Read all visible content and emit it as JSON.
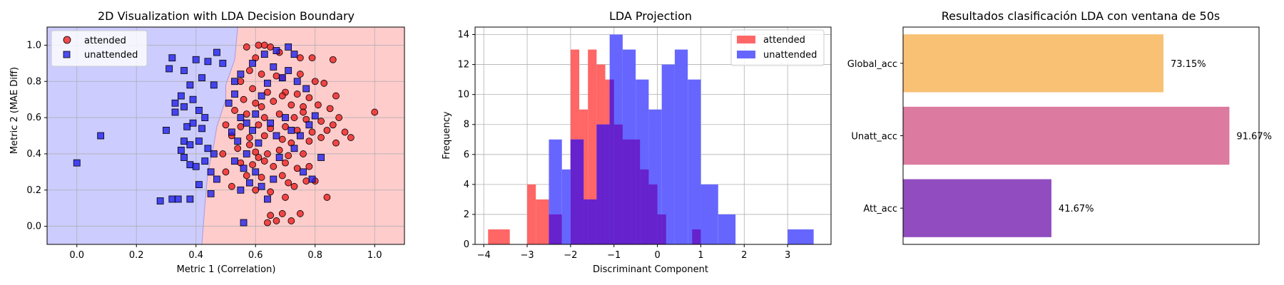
{
  "chart_data": [
    {
      "type": "scatter",
      "title": "2D Visualization with LDA Decision Boundary",
      "xlabel": "Metric 1 (Correlation)",
      "ylabel": "Metric 2 (MAE Diff)",
      "xlim": [
        -0.1,
        1.1
      ],
      "ylim": [
        -0.1,
        1.1
      ],
      "xticks": [
        "0.0",
        "0.2",
        "0.4",
        "0.6",
        "0.8",
        "1.0"
      ],
      "yticks": [
        "0.0",
        "0.2",
        "0.4",
        "0.6",
        "0.8",
        "1.0"
      ],
      "grid": true,
      "legend_position": "top-left",
      "region_colors": {
        "unattended": "#ccccff",
        "attended": "#ffcccc"
      },
      "boundary": [
        [
          0.54,
          1.1
        ],
        [
          0.53,
          0.92
        ],
        [
          0.5,
          0.78
        ],
        [
          0.5,
          0.7
        ],
        [
          0.47,
          0.55
        ],
        [
          0.46,
          0.45
        ],
        [
          0.44,
          0.3
        ],
        [
          0.43,
          0.12
        ],
        [
          0.42,
          -0.1
        ]
      ],
      "series": [
        {
          "name": "attended",
          "marker": "circle",
          "color": "#ee2222",
          "points": [
            [
              0.57,
              0.99
            ],
            [
              0.61,
              1.0
            ],
            [
              0.63,
              1.0
            ],
            [
              0.65,
              0.99
            ],
            [
              0.68,
              0.96
            ],
            [
              0.75,
              0.93
            ],
            [
              0.79,
              0.93
            ],
            [
              0.86,
              0.92
            ],
            [
              0.6,
              0.93
            ],
            [
              0.58,
              0.86
            ],
            [
              0.62,
              0.84
            ],
            [
              0.67,
              0.83
            ],
            [
              0.69,
              0.82
            ],
            [
              0.75,
              0.84
            ],
            [
              0.8,
              0.8
            ],
            [
              0.83,
              0.79
            ],
            [
              0.87,
              0.72
            ],
            [
              0.55,
              0.8
            ],
            [
              0.59,
              0.76
            ],
            [
              0.64,
              0.74
            ],
            [
              0.7,
              0.74
            ],
            [
              0.74,
              0.73
            ],
            [
              0.78,
              0.71
            ],
            [
              0.56,
              0.7
            ],
            [
              0.6,
              0.68
            ],
            [
              0.62,
              0.66
            ],
            [
              0.66,
              0.69
            ],
            [
              0.72,
              0.67
            ],
            [
              0.76,
              0.66
            ],
            [
              0.81,
              0.67
            ],
            [
              0.85,
              0.65
            ],
            [
              0.53,
              0.64
            ],
            [
              0.57,
              0.62
            ],
            [
              0.63,
              0.6
            ],
            [
              0.68,
              0.62
            ],
            [
              0.73,
              0.6
            ],
            [
              0.77,
              0.59
            ],
            [
              0.82,
              0.58
            ],
            [
              0.88,
              0.6
            ],
            [
              0.86,
              0.56
            ],
            [
              0.5,
              0.56
            ],
            [
              0.55,
              0.55
            ],
            [
              0.61,
              0.56
            ],
            [
              0.65,
              0.54
            ],
            [
              0.7,
              0.55
            ],
            [
              0.74,
              0.53
            ],
            [
              0.79,
              0.52
            ],
            [
              0.84,
              0.53
            ],
            [
              0.9,
              0.52
            ],
            [
              0.92,
              0.49
            ],
            [
              0.52,
              0.5
            ],
            [
              0.58,
              0.49
            ],
            [
              0.63,
              0.5
            ],
            [
              0.69,
              0.48
            ],
            [
              0.72,
              0.46
            ],
            [
              0.78,
              0.47
            ],
            [
              0.82,
              0.49
            ],
            [
              0.87,
              0.46
            ],
            [
              0.54,
              0.43
            ],
            [
              0.6,
              0.41
            ],
            [
              0.64,
              0.4
            ],
            [
              0.68,
              0.42
            ],
            [
              0.71,
              0.39
            ],
            [
              0.76,
              0.4
            ],
            [
              0.49,
              0.4
            ],
            [
              0.55,
              0.35
            ],
            [
              0.59,
              0.34
            ],
            [
              0.63,
              0.36
            ],
            [
              0.66,
              0.33
            ],
            [
              0.7,
              0.35
            ],
            [
              0.74,
              0.32
            ],
            [
              0.78,
              0.33
            ],
            [
              0.5,
              0.3
            ],
            [
              0.57,
              0.28
            ],
            [
              0.62,
              0.27
            ],
            [
              0.69,
              0.28
            ],
            [
              0.71,
              0.24
            ],
            [
              0.73,
              0.22
            ],
            [
              0.77,
              0.25
            ],
            [
              0.8,
              0.25
            ],
            [
              0.52,
              0.22
            ],
            [
              0.6,
              0.2
            ],
            [
              0.65,
              0.19
            ],
            [
              0.7,
              0.16
            ],
            [
              0.84,
              0.16
            ],
            [
              0.65,
              0.06
            ],
            [
              0.69,
              0.07
            ],
            [
              0.67,
              0.03
            ],
            [
              0.64,
              0.02
            ],
            [
              0.72,
              0.03
            ],
            [
              0.75,
              0.07
            ],
            [
              1.0,
              0.63
            ],
            [
              0.76,
              0.63
            ],
            [
              0.69,
              0.72
            ],
            [
              0.58,
              0.45
            ],
            [
              0.61,
              0.38
            ]
          ]
        },
        {
          "name": "unattended",
          "marker": "square",
          "color": "#2222ee",
          "points": [
            [
              0.0,
              0.35
            ],
            [
              0.08,
              0.5
            ],
            [
              0.28,
              0.14
            ],
            [
              0.32,
              0.15
            ],
            [
              0.34,
              0.15
            ],
            [
              0.38,
              0.15
            ],
            [
              0.3,
              0.53
            ],
            [
              0.31,
              0.87
            ],
            [
              0.32,
              0.93
            ],
            [
              0.36,
              0.86
            ],
            [
              0.4,
              0.92
            ],
            [
              0.44,
              0.91
            ],
            [
              0.47,
              0.96
            ],
            [
              0.49,
              0.9
            ],
            [
              0.42,
              0.82
            ],
            [
              0.46,
              0.78
            ],
            [
              0.38,
              0.78
            ],
            [
              0.35,
              0.72
            ],
            [
              0.33,
              0.68
            ],
            [
              0.33,
              0.63
            ],
            [
              0.36,
              0.66
            ],
            [
              0.39,
              0.7
            ],
            [
              0.41,
              0.64
            ],
            [
              0.43,
              0.6
            ],
            [
              0.37,
              0.55
            ],
            [
              0.39,
              0.57
            ],
            [
              0.42,
              0.54
            ],
            [
              0.36,
              0.47
            ],
            [
              0.38,
              0.45
            ],
            [
              0.41,
              0.47
            ],
            [
              0.44,
              0.43
            ],
            [
              0.35,
              0.42
            ],
            [
              0.36,
              0.38
            ],
            [
              0.38,
              0.34
            ],
            [
              0.4,
              0.33
            ],
            [
              0.43,
              0.36
            ],
            [
              0.46,
              0.4
            ],
            [
              0.45,
              0.3
            ],
            [
              0.47,
              0.26
            ],
            [
              0.41,
              0.23
            ],
            [
              0.45,
              0.18
            ],
            [
              0.53,
              0.8
            ],
            [
              0.55,
              0.84
            ],
            [
              0.59,
              0.9
            ],
            [
              0.63,
              0.95
            ],
            [
              0.67,
              0.97
            ],
            [
              0.71,
              0.99
            ],
            [
              0.73,
              0.95
            ],
            [
              0.51,
              0.68
            ],
            [
              0.53,
              0.73
            ],
            [
              0.55,
              0.6
            ],
            [
              0.57,
              0.57
            ],
            [
              0.52,
              0.52
            ],
            [
              0.54,
              0.47
            ],
            [
              0.57,
              0.4
            ],
            [
              0.59,
              0.53
            ],
            [
              0.6,
              0.62
            ],
            [
              0.62,
              0.72
            ],
            [
              0.64,
              0.79
            ],
            [
              0.66,
              0.88
            ],
            [
              0.69,
              0.82
            ],
            [
              0.71,
              0.86
            ],
            [
              0.74,
              0.8
            ],
            [
              0.77,
              0.76
            ],
            [
              0.65,
              0.57
            ],
            [
              0.67,
              0.5
            ],
            [
              0.7,
              0.6
            ],
            [
              0.72,
              0.53
            ],
            [
              0.75,
              0.5
            ],
            [
              0.78,
              0.56
            ],
            [
              0.8,
              0.61
            ],
            [
              0.82,
              0.38
            ],
            [
              0.6,
              0.3
            ],
            [
              0.66,
              0.26
            ],
            [
              0.68,
              0.38
            ],
            [
              0.73,
              0.43
            ],
            [
              0.76,
              0.3
            ],
            [
              0.79,
              0.26
            ],
            [
              0.62,
              0.22
            ],
            [
              0.64,
              0.15
            ],
            [
              0.55,
              0.2
            ],
            [
              0.56,
              0.02
            ],
            [
              0.58,
              0.24
            ],
            [
              0.53,
              0.36
            ],
            [
              0.56,
              0.32
            ],
            [
              0.61,
              0.46
            ]
          ]
        }
      ]
    },
    {
      "type": "bar",
      "subtype": "histogram",
      "title": "LDA Projection",
      "xlabel": "Discriminant Component",
      "ylabel": "Frequency",
      "xlim": [
        -4.2,
        4.0
      ],
      "ylim": [
        0,
        14.5
      ],
      "xticks": [
        "−4",
        "−3",
        "−2",
        "−1",
        "0",
        "1",
        "2",
        "3"
      ],
      "yticks": [
        "0",
        "2",
        "4",
        "6",
        "8",
        "10",
        "12",
        "14"
      ],
      "grid": true,
      "legend_position": "top-right",
      "overlap_color": "#6622cc",
      "series": [
        {
          "name": "attended",
          "color": "#ff6666",
          "bins": [
            [
              -3.9,
              -3.4,
              1
            ],
            [
              -3.0,
              -2.8,
              4
            ],
            [
              -2.8,
              -2.5,
              3
            ],
            [
              -2.5,
              -2.2,
              2
            ],
            [
              -2.0,
              -1.8,
              13
            ],
            [
              -1.8,
              -1.6,
              9
            ],
            [
              -1.6,
              -1.4,
              13
            ],
            [
              -1.4,
              -1.2,
              12
            ],
            [
              -1.2,
              -1.0,
              11
            ],
            [
              -1.0,
              -0.8,
              8
            ],
            [
              -0.8,
              -0.6,
              7
            ],
            [
              -0.6,
              -0.4,
              7
            ],
            [
              -0.4,
              -0.2,
              5
            ],
            [
              -0.2,
              0.0,
              4
            ],
            [
              0.0,
              0.2,
              2
            ],
            [
              0.8,
              1.0,
              1
            ]
          ]
        },
        {
          "name": "unattended",
          "color": "#6666ff",
          "bins": [
            [
              -2.5,
              -2.2,
              7
            ],
            [
              -2.2,
              -2.0,
              5
            ],
            [
              -2.0,
              -1.7,
              7
            ],
            [
              -1.7,
              -1.4,
              3
            ],
            [
              -1.4,
              -1.1,
              8
            ],
            [
              -1.1,
              -0.8,
              14
            ],
            [
              -0.8,
              -0.5,
              13
            ],
            [
              -0.5,
              -0.2,
              11
            ],
            [
              -0.2,
              0.1,
              9
            ],
            [
              0.1,
              0.4,
              12
            ],
            [
              0.4,
              0.7,
              13
            ],
            [
              0.7,
              1.0,
              11
            ],
            [
              1.0,
              1.4,
              4
            ],
            [
              1.4,
              1.8,
              2
            ],
            [
              3.0,
              3.6,
              1
            ]
          ]
        }
      ]
    },
    {
      "type": "bar",
      "orientation": "horizontal",
      "title": "Resultados clasificación LDA con ventana de 50s",
      "xlim": [
        0,
        100
      ],
      "categories": [
        "Global_acc",
        "Unatt_acc",
        "Att_acc"
      ],
      "values": [
        73.15,
        91.67,
        41.67
      ],
      "value_labels": [
        "73.15%",
        "91.67%",
        "41.67%"
      ],
      "colors": [
        "#f8c173",
        "#dc7a9f",
        "#914dbf"
      ]
    }
  ]
}
